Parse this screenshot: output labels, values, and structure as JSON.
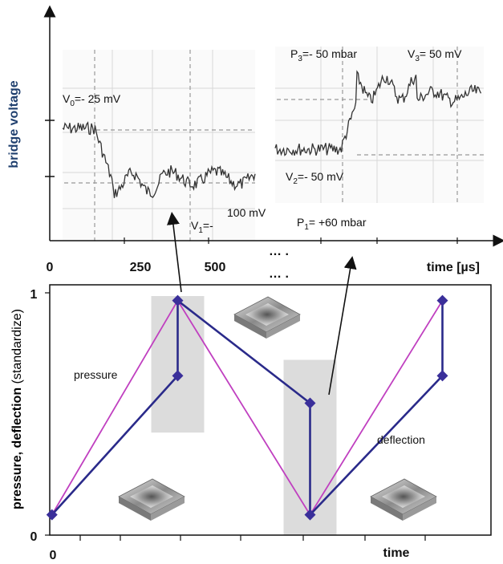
{
  "chart_data": [
    {
      "type": "line",
      "name": "bridge-voltage-inset",
      "ylabel": "bridge voltage",
      "xlabel": "time [µs]",
      "xticks": [
        "0",
        "250",
        "500"
      ],
      "ellipsis": [
        "…  .",
        "…  ."
      ],
      "annotations": {
        "v0": {
          "main": "V",
          "sub": "0",
          "rest": "=- 25 mV"
        },
        "v1": {
          "main": "V",
          "sub": "1",
          "rest": "=-",
          "value": "100 mV"
        },
        "v2": {
          "main": "V",
          "sub": "2",
          "rest": "=- 50 mV"
        },
        "v3": {
          "main": "V",
          "sub": "3",
          "rest": "= 50 mV"
        },
        "p3": {
          "main": "P",
          "sub": "3",
          "rest": "=- 50 mbar"
        },
        "p1": {
          "main": "P",
          "sub": "1",
          "rest": "= +60 mbar"
        }
      }
    },
    {
      "type": "line",
      "name": "pressure-deflection-standardized",
      "ylabel_bold": "pressure, deflection",
      "ylabel_normal": " (standardize)",
      "xlabel": "time",
      "x_origin_label": "0",
      "yticks": [
        "0",
        "1"
      ],
      "ylim": [
        0,
        1
      ],
      "xlim": [
        0,
        10
      ],
      "series": [
        {
          "name": "pressure",
          "color": "#c040c0",
          "x": [
            0.05,
            2.9,
            5.9,
            8.9
          ],
          "y": [
            0.04,
            0.98,
            0.04,
            0.98
          ]
        },
        {
          "name": "deflection",
          "color": "#2a2a8a",
          "x": [
            0.05,
            2.9,
            2.9,
            2.9,
            5.9,
            5.9,
            5.9,
            8.9,
            8.9,
            8.9
          ],
          "y": [
            0.04,
            0.65,
            0.98,
            0.98,
            0.53,
            0.04,
            0.04,
            0.65,
            0.98,
            0.98
          ]
        }
      ],
      "markers": {
        "x": [
          0.05,
          2.9,
          2.9,
          5.9,
          5.9,
          8.9,
          8.9
        ],
        "y": [
          0.04,
          0.65,
          0.98,
          0.53,
          0.04,
          0.65,
          0.98
        ],
        "color": "#3a2f9a"
      },
      "highlight_bands": [
        {
          "x": [
            2.3,
            3.5
          ],
          "y": [
            0.45,
            1.0
          ]
        },
        {
          "x": [
            5.3,
            6.5
          ],
          "y": [
            0.0,
            0.72
          ]
        }
      ],
      "series_labels": {
        "pressure": "pressure",
        "deflection": "deflection"
      }
    }
  ],
  "colors": {
    "voltage_label": "#1f3f6e",
    "band": "#dcdcdc",
    "pressure": "#c040c0",
    "deflection": "#2a2a8a",
    "marker": "#3a2f9a"
  }
}
